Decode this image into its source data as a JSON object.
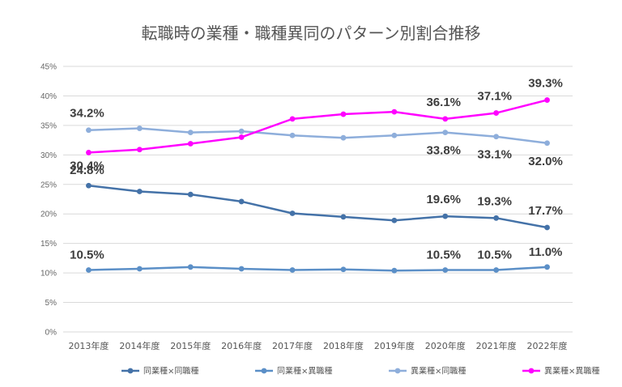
{
  "chart_data": {
    "type": "line",
    "title": "転職時の業種・職種異同のパターン別割合推移",
    "categories": [
      "2013年度",
      "2014年度",
      "2015年度",
      "2016年度",
      "2017年度",
      "2018年度",
      "2019年度",
      "2020年度",
      "2021年度",
      "2022年度"
    ],
    "yticks": [
      "0%",
      "5%",
      "10%",
      "15%",
      "20%",
      "25%",
      "30%",
      "35%",
      "40%",
      "45%"
    ],
    "ylim": [
      0,
      45
    ],
    "ytick_step": 5,
    "grid": true,
    "legend_position": "bottom",
    "series": [
      {
        "name": "同業種×同職種",
        "color": "#4472a8",
        "values": [
          24.8,
          23.8,
          23.3,
          22.1,
          20.1,
          19.5,
          18.9,
          19.6,
          19.3,
          17.7
        ],
        "labels": [
          {
            "index": 0,
            "text": "24.8%"
          },
          {
            "index": 7,
            "text": "19.6%"
          },
          {
            "index": 8,
            "text": "19.3%"
          },
          {
            "index": 9,
            "text": "17.7%"
          }
        ]
      },
      {
        "name": "同業種×異職種",
        "color": "#5b8fc7",
        "values": [
          10.5,
          10.7,
          11.0,
          10.7,
          10.5,
          10.6,
          10.4,
          10.5,
          10.5,
          11.0
        ],
        "labels": [
          {
            "index": 0,
            "text": "10.5%"
          },
          {
            "index": 7,
            "text": "10.5%"
          },
          {
            "index": 8,
            "text": "10.5%"
          },
          {
            "index": 9,
            "text": "11.0%"
          }
        ]
      },
      {
        "name": "異業種×同職種",
        "color": "#8eaedb",
        "values": [
          34.2,
          34.5,
          33.8,
          34.0,
          33.3,
          32.9,
          33.3,
          33.8,
          33.1,
          32.0
        ],
        "labels": [
          {
            "index": 0,
            "text": "34.2%"
          },
          {
            "index": 7,
            "text": "33.8%"
          },
          {
            "index": 8,
            "text": "33.1%"
          },
          {
            "index": 9,
            "text": "32.0%"
          }
        ]
      },
      {
        "name": "異業種×異職種",
        "color": "#ff00ff",
        "values": [
          30.4,
          30.9,
          31.9,
          33.0,
          36.1,
          36.9,
          37.3,
          36.1,
          37.1,
          39.3
        ],
        "labels": [
          {
            "index": 0,
            "text": "30.4%"
          },
          {
            "index": 7,
            "text": "36.1%"
          },
          {
            "index": 8,
            "text": "37.1%"
          },
          {
            "index": 9,
            "text": "39.3%"
          }
        ]
      }
    ]
  }
}
